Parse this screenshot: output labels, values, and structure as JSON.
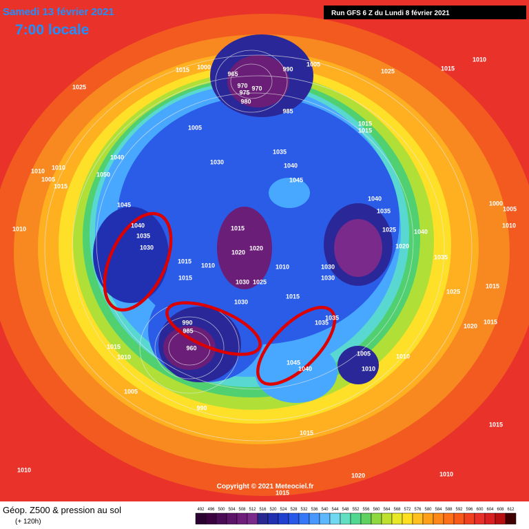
{
  "header": {
    "date": "Samedi 13 février 2021",
    "time": "7:00 locale",
    "run": "Run GFS 6 Z du Lundi 8 février 2021"
  },
  "copyright": "Copyright © 2021 Meteociel.fr",
  "footer": {
    "title": "Géop. Z500 & pression au sol",
    "subtitle": "(+ 120h)"
  },
  "scale": {
    "values": [
      492,
      496,
      500,
      504,
      508,
      512,
      516,
      520,
      524,
      528,
      532,
      536,
      540,
      544,
      548,
      552,
      556,
      560,
      564,
      568,
      572,
      576,
      580,
      584,
      588,
      592,
      596,
      600,
      604,
      608,
      612
    ],
    "colors": [
      "#2a0030",
      "#3a0040",
      "#4b0a55",
      "#5c1468",
      "#6e1e7a",
      "#7a2a8a",
      "#282890",
      "#2030b0",
      "#2040d0",
      "#2858e8",
      "#3478f8",
      "#4898ff",
      "#5cb8ff",
      "#70d8f0",
      "#60e0c0",
      "#50d890",
      "#60d060",
      "#90d840",
      "#c0e030",
      "#e8e828",
      "#ffe020",
      "#ffc020",
      "#ffa018",
      "#ff8818",
      "#ff7018",
      "#f85818",
      "#f04020",
      "#e83028",
      "#d82020",
      "#b81010",
      "#400000"
    ]
  },
  "isobar_labels": [
    "1015",
    "1000",
    "965",
    "970",
    "975",
    "970",
    "980",
    "990",
    "1005",
    "1025",
    "1015",
    "1010",
    "1025",
    "985",
    "1005",
    "1015",
    "1015",
    "1035",
    "1040",
    "1030",
    "1040",
    "1045",
    "1010",
    "1010",
    "1005",
    "1050",
    "1015",
    "1045",
    "1040",
    "1035",
    "1000",
    "1005",
    "1040",
    "1035",
    "1015",
    "1030",
    "1010",
    "1025",
    "1040",
    "1010",
    "1020",
    "1020",
    "1020",
    "1035",
    "1015",
    "1010",
    "1010",
    "1030",
    "1015",
    "1030",
    "1025",
    "1030",
    "1025",
    "1015",
    "1015",
    "1030",
    "990",
    "985",
    "960",
    "1035",
    "1035",
    "1020",
    "1015",
    "1015",
    "1010",
    "1005",
    "1010",
    "1045",
    "1040",
    "1010",
    "1005",
    "990",
    "1015",
    "1015",
    "1010",
    "1010",
    "1020",
    "1015"
  ]
}
